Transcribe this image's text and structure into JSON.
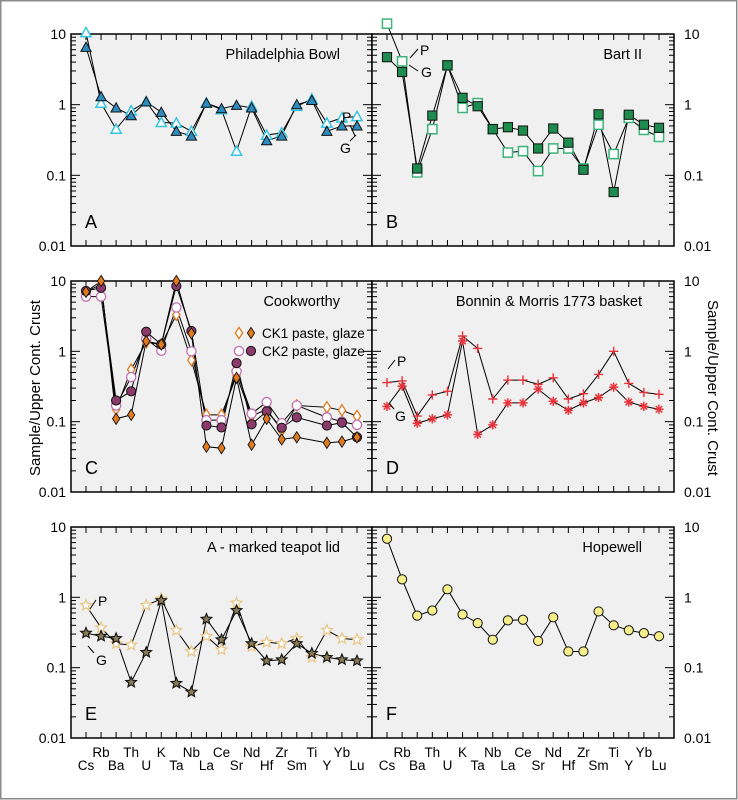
{
  "chart_data": {
    "type": "line",
    "yscale": "log",
    "ylim": [
      0.01,
      10
    ],
    "ylabel": "Sample/Upper Cont. Crust",
    "yticks": [
      "10",
      "1",
      "0.1",
      "0.01"
    ],
    "categories": [
      "Cs",
      "Rb",
      "Ba",
      "Th",
      "U",
      "K",
      "Ta",
      "Nb",
      "La",
      "Ce",
      "Sr",
      "Nd",
      "Hf",
      "Zr",
      "Sm",
      "Ti",
      "Y",
      "Yb",
      "Lu"
    ],
    "category_label_rows": {
      "upper": [
        "Rb",
        "Th",
        "K",
        "Nb",
        "Ce",
        "Nd",
        "Zr",
        "Ti",
        "Yb"
      ],
      "lower": [
        "Cs",
        "Ba",
        "U",
        "Ta",
        "La",
        "Sr",
        "Hf",
        "Sm",
        "Y",
        "Lu"
      ]
    },
    "panels": [
      {
        "letter": "A",
        "title": "Philadelphia Bowl",
        "annotations": [
          "P",
          "G"
        ],
        "series": [
          {
            "name": "P",
            "marker": "triangle-open",
            "color": "#35c5e0",
            "values": [
              10.5,
              1.05,
              0.45,
              0.82,
              1.1,
              0.56,
              0.55,
              0.42,
              1.05,
              0.85,
              0.22,
              0.95,
              0.37,
              0.4,
              0.95,
              1.2,
              0.55,
              0.65,
              0.68
            ]
          },
          {
            "name": "G",
            "marker": "triangle-filled",
            "color": "#2e8bc0",
            "values": [
              6.5,
              1.3,
              0.9,
              0.7,
              1.1,
              0.78,
              0.42,
              0.36,
              1.05,
              0.88,
              0.98,
              0.9,
              0.31,
              0.36,
              1.0,
              1.15,
              0.42,
              0.5,
              0.5
            ]
          }
        ]
      },
      {
        "letter": "B",
        "title": "Bart II",
        "annotations": [
          "P",
          "G"
        ],
        "series": [
          {
            "name": "P",
            "marker": "square-open",
            "color": "#3bb37a",
            "values": [
              14,
              4.1,
              0.11,
              0.45,
              3.6,
              0.9,
              1.05,
              0.45,
              0.21,
              0.22,
              0.115,
              0.24,
              0.24,
              0.125,
              0.52,
              0.2,
              0.65,
              0.44,
              0.35
            ]
          },
          {
            "name": "G",
            "marker": "square-filled",
            "color": "#1e8c4e",
            "values": [
              4.7,
              2.9,
              0.125,
              0.7,
              3.6,
              1.25,
              0.95,
              0.45,
              0.48,
              0.43,
              0.24,
              0.46,
              0.29,
              0.12,
              0.73,
              0.058,
              0.72,
              0.52,
              0.47
            ]
          }
        ]
      },
      {
        "letter": "C",
        "title": "Cookworthy",
        "legend": [
          {
            "label": "CK1 paste, glaze",
            "markers": [
              "diamond-open",
              "diamond-filled"
            ],
            "color": "#e07a1f"
          },
          {
            "label": "CK2 paste, glaze",
            "markers": [
              "circle-open",
              "circle-filled"
            ],
            "color": "#8b3a6b",
            "open_color": "#c070b0"
          }
        ],
        "legend_position": "top-right",
        "series": [
          {
            "name": "CK1 paste",
            "marker": "diamond-open",
            "color": "#e07a1f",
            "values": [
              7,
              9,
              0.15,
              0.55,
              1.35,
              1.25,
              3.3,
              0.75,
              0.125,
              0.125,
              0.45,
              0.12,
              0.15,
              0.075,
              0.17,
              null,
              0.16,
              0.145,
              0.12
            ]
          },
          {
            "name": "CK2 paste",
            "marker": "circle-open",
            "color": "#c070b0",
            "values": [
              6,
              6,
              0.17,
              0.43,
              1.5,
              1.02,
              4.2,
              1.0,
              0.105,
              0.105,
              0.52,
              0.13,
              0.19,
              0.095,
              0.17,
              null,
              0.115,
              0.1,
              0.09
            ]
          },
          {
            "name": "CK2 glaze",
            "marker": "circle-filled",
            "color": "#8b3a6b",
            "values": [
              7.2,
              8,
              0.2,
              0.27,
              1.9,
              1.25,
              8.5,
              1.95,
              0.088,
              0.083,
              0.68,
              0.092,
              0.14,
              0.082,
              0.115,
              null,
              0.088,
              0.097,
              0.06
            ]
          },
          {
            "name": "CK1 glaze",
            "marker": "diamond-filled",
            "color": "#e07a1f",
            "values": [
              7,
              10,
              0.11,
              0.125,
              1.4,
              1.25,
              10,
              1.8,
              0.044,
              0.042,
              0.42,
              0.047,
              0.11,
              0.056,
              0.06,
              null,
              0.05,
              0.052,
              0.06
            ]
          }
        ]
      },
      {
        "letter": "D",
        "title": "Bonnin & Morris 1773 basket",
        "annotations": [
          "P",
          "G"
        ],
        "series": [
          {
            "name": "P",
            "marker": "plus",
            "color": "#e8333a",
            "values": [
              0.36,
              0.38,
              0.12,
              0.24,
              0.27,
              1.65,
              1.1,
              0.21,
              0.39,
              0.39,
              0.34,
              0.42,
              0.21,
              0.25,
              0.47,
              1.0,
              0.35,
              0.26,
              0.245
            ]
          },
          {
            "name": "G",
            "marker": "asterisk",
            "color": "#e8333a",
            "values": [
              0.165,
              0.32,
              0.095,
              0.11,
              0.125,
              1.4,
              0.066,
              0.09,
              0.185,
              0.185,
              0.29,
              0.195,
              0.145,
              0.185,
              0.22,
              0.31,
              0.19,
              0.165,
              0.15
            ]
          }
        ]
      },
      {
        "letter": "E",
        "title": "A - marked teapot lid",
        "annotations": [
          "P",
          "G"
        ],
        "series": [
          {
            "name": "P",
            "marker": "star-open",
            "color": "#e8c88a",
            "values": [
              0.77,
              0.37,
              0.22,
              0.21,
              0.77,
              0.95,
              0.34,
              0.17,
              0.28,
              0.18,
              0.83,
              0.2,
              0.23,
              0.22,
              0.26,
              0.14,
              0.34,
              0.26,
              0.25
            ]
          },
          {
            "name": "G",
            "marker": "star-filled",
            "color": "#8a7a55",
            "values": [
              0.31,
              0.28,
              0.26,
              0.062,
              0.165,
              0.9,
              0.06,
              0.045,
              0.49,
              0.25,
              0.65,
              0.22,
              0.125,
              0.13,
              0.22,
              0.16,
              0.14,
              0.13,
              0.125
            ]
          }
        ]
      },
      {
        "letter": "F",
        "title": "Hopewell",
        "series": [
          {
            "name": "Hopewell",
            "marker": "circle-filled",
            "color": "#f5ee8a",
            "values": [
              6.8,
              1.8,
              0.55,
              0.65,
              1.3,
              0.57,
              0.43,
              0.25,
              0.47,
              0.48,
              0.24,
              0.52,
              0.17,
              0.17,
              0.63,
              0.4,
              0.34,
              0.31,
              0.28
            ]
          }
        ]
      }
    ]
  }
}
